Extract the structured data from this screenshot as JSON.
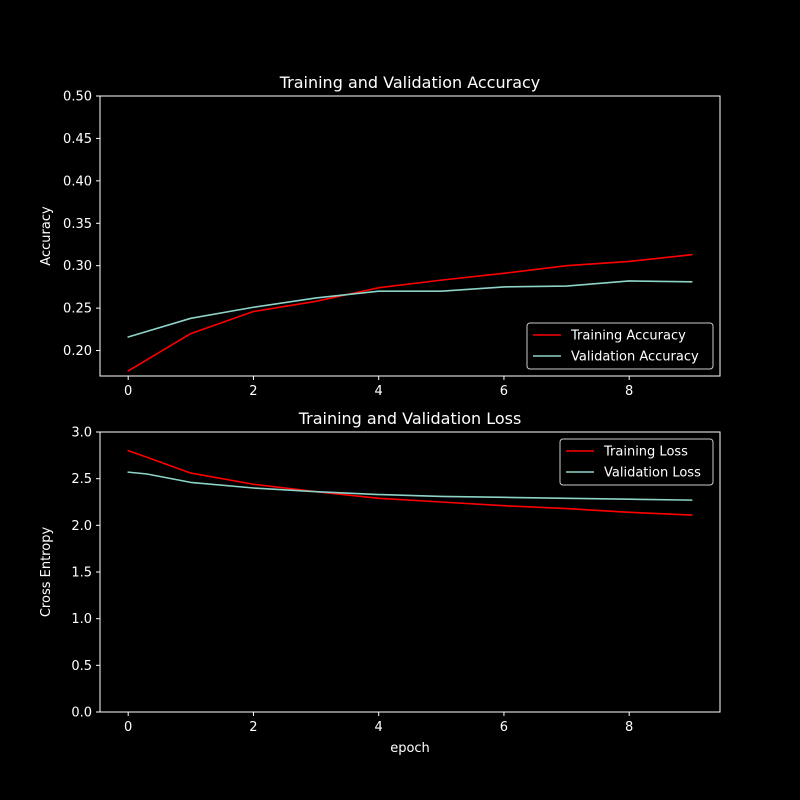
{
  "colors": {
    "background": "#000000",
    "foreground": "#ffffff",
    "training": "#ff0000",
    "validation": "#8dd3c7"
  },
  "chart_data": [
    {
      "type": "line",
      "title": "Training and Validation Accuracy",
      "xlabel": "",
      "ylabel": "Accuracy",
      "xlim": [
        -0.45,
        9.45
      ],
      "ylim": [
        0.17,
        0.5
      ],
      "xticks": [
        0,
        2,
        4,
        6,
        8
      ],
      "yticks": [
        0.2,
        0.25,
        0.3,
        0.35,
        0.4,
        0.45,
        0.5
      ],
      "ytick_labels": [
        "0.20",
        "0.25",
        "0.30",
        "0.35",
        "0.40",
        "0.45",
        "0.50"
      ],
      "legend_location": "lower-right",
      "grid": false,
      "x": [
        0,
        1,
        2,
        3,
        4,
        5,
        6,
        7,
        8,
        9
      ],
      "series": [
        {
          "name": "Training Accuracy",
          "color": "#ff0000",
          "values": [
            0.176,
            0.22,
            0.246,
            0.258,
            0.274,
            0.283,
            0.291,
            0.3,
            0.305,
            0.313
          ]
        },
        {
          "name": "Validation Accuracy",
          "color": "#8dd3c7",
          "values": [
            0.216,
            0.238,
            0.251,
            0.262,
            0.27,
            0.27,
            0.275,
            0.276,
            0.282,
            0.281
          ]
        }
      ]
    },
    {
      "type": "line",
      "title": "Training and Validation Loss",
      "xlabel": "epoch",
      "ylabel": "Cross Entropy",
      "xlim": [
        -0.45,
        9.45
      ],
      "ylim": [
        0.0,
        3.0
      ],
      "xticks": [
        0,
        2,
        4,
        6,
        8
      ],
      "yticks": [
        0.0,
        0.5,
        1.0,
        1.5,
        2.0,
        2.5,
        3.0
      ],
      "ytick_labels": [
        "0.0",
        "0.5",
        "1.0",
        "1.5",
        "2.0",
        "2.5",
        "3.0"
      ],
      "legend_location": "upper-right",
      "grid": false,
      "x": [
        0,
        0.3,
        1,
        2,
        3,
        4,
        5,
        6,
        7,
        8,
        9
      ],
      "series": [
        {
          "name": "Training Loss",
          "color": "#ff0000",
          "values": [
            2.8,
            2.73,
            2.56,
            2.44,
            2.36,
            2.29,
            2.25,
            2.21,
            2.18,
            2.14,
            2.11
          ]
        },
        {
          "name": "Validation Loss",
          "color": "#8dd3c7",
          "values": [
            2.57,
            2.55,
            2.46,
            2.4,
            2.36,
            2.33,
            2.31,
            2.3,
            2.29,
            2.28,
            2.27
          ]
        }
      ]
    }
  ]
}
